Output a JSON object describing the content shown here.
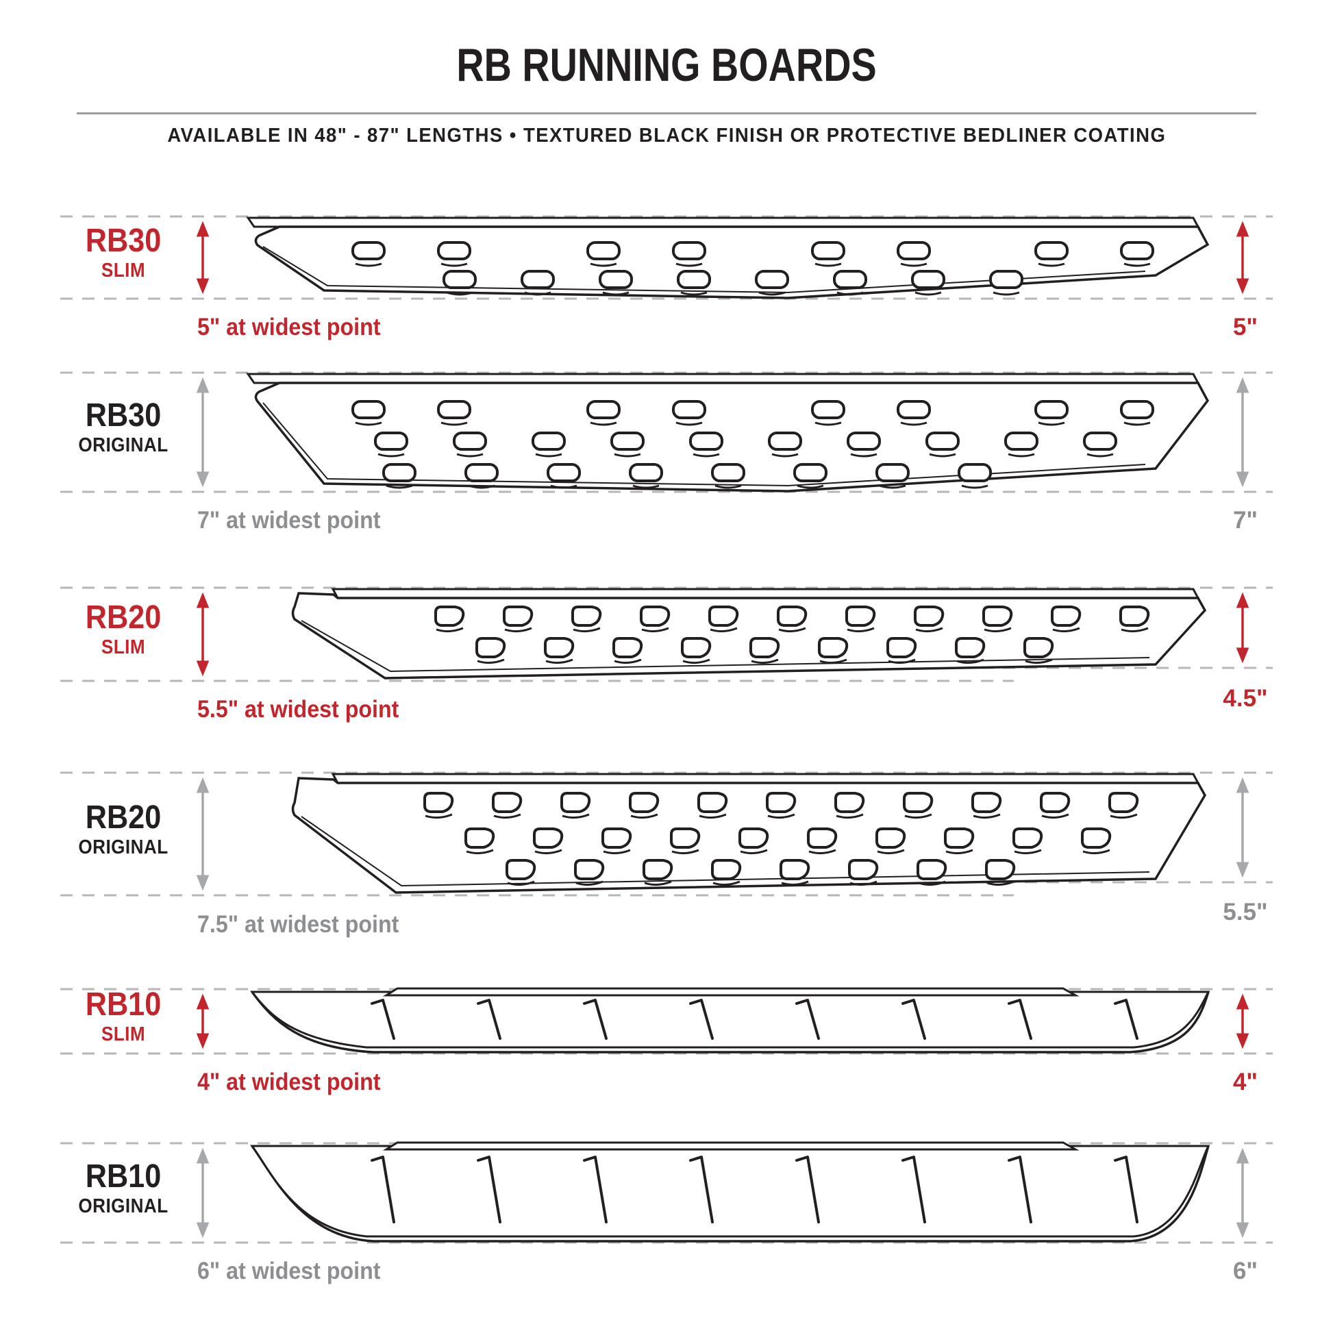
{
  "header": {
    "title": "RB RUNNING BOARDS",
    "subtitle": "AVAILABLE IN 48\" - 87\" LENGTHS  •  TEXTURED BLACK FINISH OR PROTECTIVE BEDLINER COATING"
  },
  "colors": {
    "accent_red": "#C3252C",
    "ink": "#231F20",
    "gray_text": "#8C8E91",
    "gray_arrow": "#A6A8AB",
    "dash": "#B5B7BA"
  },
  "products": [
    {
      "model": "RB30",
      "variant": "SLIM",
      "width_label": "5\" at widest point",
      "height_label": "5\"",
      "accent": "red"
    },
    {
      "model": "RB30",
      "variant": "ORIGINAL",
      "width_label": "7\" at widest point",
      "height_label": "7\"",
      "accent": "gray"
    },
    {
      "model": "RB20",
      "variant": "SLIM",
      "width_label": "5.5\" at widest point",
      "height_label": "4.5\"",
      "accent": "red"
    },
    {
      "model": "RB20",
      "variant": "ORIGINAL",
      "width_label": "7.5\" at widest point",
      "height_label": "5.5\"",
      "accent": "gray"
    },
    {
      "model": "RB10",
      "variant": "SLIM",
      "width_label": "4\" at widest point",
      "height_label": "4\"",
      "accent": "red"
    },
    {
      "model": "RB10",
      "variant": "ORIGINAL",
      "width_label": "6\" at widest point",
      "height_label": "6\"",
      "accent": "gray"
    }
  ]
}
